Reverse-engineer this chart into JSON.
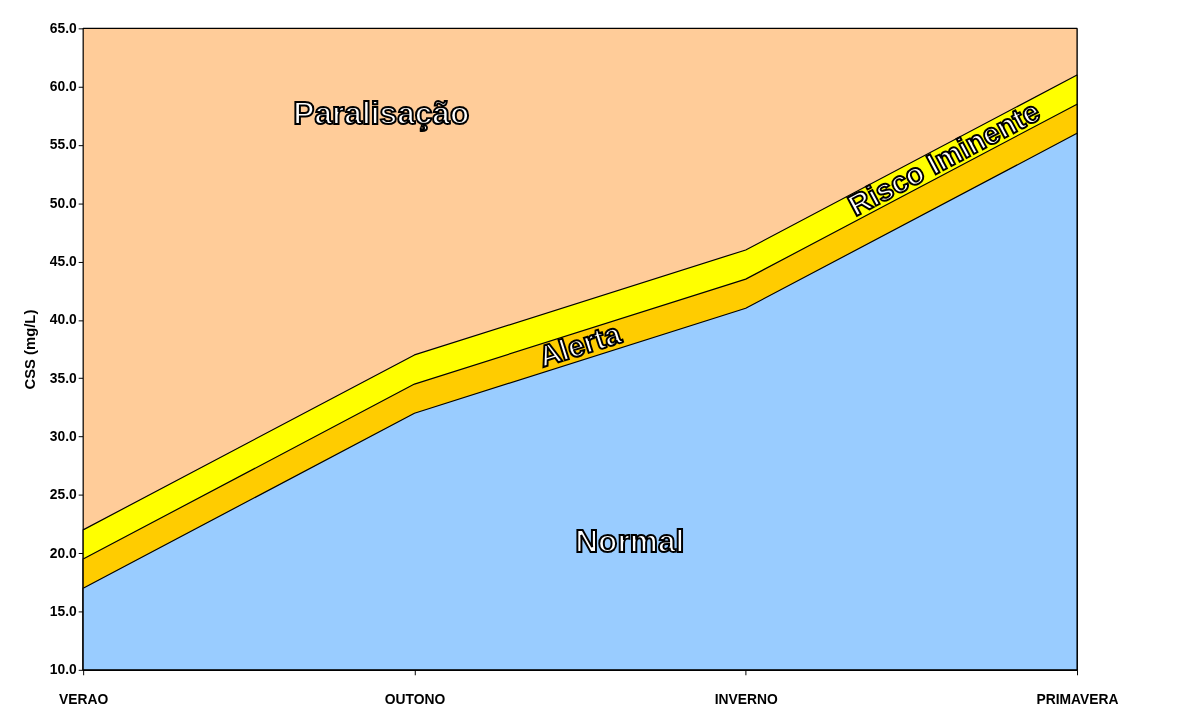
{
  "chart_data": {
    "type": "area",
    "ylabel": "CSS (mg/L)",
    "categories": [
      "VERAO",
      "OUTONO",
      "INVERNO",
      "PRIMAVERA"
    ],
    "series": [
      {
        "name": "Normal",
        "color": "#99ccff",
        "values": [
          17.0,
          32.0,
          41.0,
          56.0
        ]
      },
      {
        "name": "Alerta",
        "color": "#ffcc00",
        "values": [
          19.5,
          34.5,
          43.5,
          58.5
        ]
      },
      {
        "name": "Risco Iminente",
        "color": "#ffff00",
        "values": [
          22.0,
          37.0,
          46.0,
          61.0
        ]
      },
      {
        "name": "Paralisação",
        "color": "#ffcc99",
        "values": [
          65.0,
          65.0,
          65.0,
          65.0
        ]
      }
    ],
    "ylim": [
      10.0,
      65.0
    ],
    "yticks": [
      {
        "value": 10,
        "label": "10.0"
      },
      {
        "value": 15,
        "label": "15.0"
      },
      {
        "value": 20,
        "label": "20.0"
      },
      {
        "value": 25,
        "label": "25.0"
      },
      {
        "value": 30,
        "label": "30.0"
      },
      {
        "value": 35,
        "label": "35.0"
      },
      {
        "value": 40,
        "label": "40.0"
      },
      {
        "value": 45,
        "label": "45.0"
      },
      {
        "value": 50,
        "label": "50.0"
      },
      {
        "value": 55,
        "label": "55.0"
      },
      {
        "value": 60,
        "label": "60.0"
      },
      {
        "value": 65,
        "label": "65.0"
      }
    ],
    "grid": false,
    "legend": false
  }
}
